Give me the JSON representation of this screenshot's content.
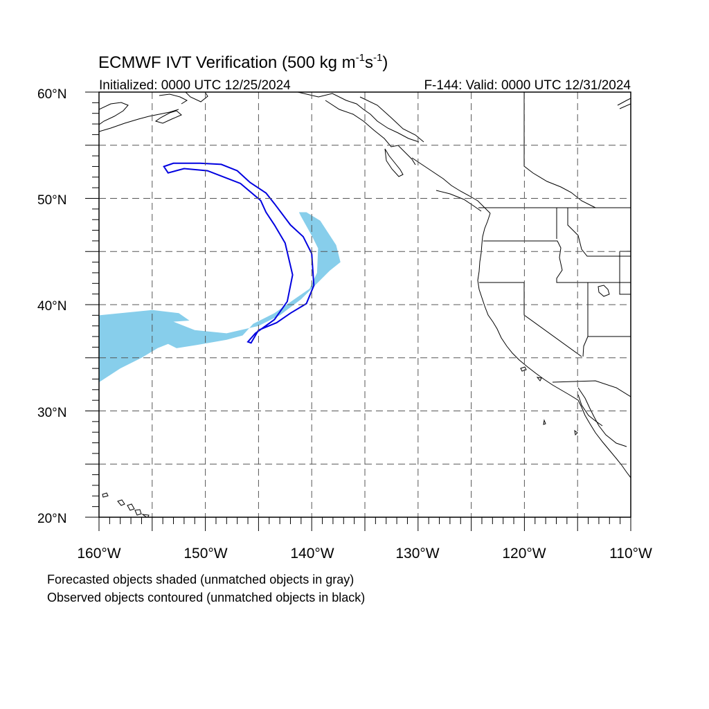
{
  "title": {
    "main": "ECMWF IVT Verification (500 kg m",
    "exp1": "-1",
    "mid": "s",
    "exp2": "-1",
    "close": ")"
  },
  "initialized": "Initialized: 0000 UTC 12/25/2024",
  "valid": "F-144: Valid: 0000 UTC 12/31/2024",
  "lat_labels": [
    "60°N",
    "50°N",
    "40°N",
    "30°N",
    "20°N"
  ],
  "lon_labels": [
    "160°W",
    "150°W",
    "140°W",
    "130°W",
    "120°W",
    "110°W"
  ],
  "notes": {
    "forecast": "Forecasted objects shaded (unmatched objects in gray)",
    "observed": "Observed objects contoured (unmatched objects in black)"
  },
  "colors": {
    "forecast_fill": "#87ceeb",
    "observed_contour": "#0000e0",
    "coastline": "#000000",
    "grid": "#555555"
  },
  "map_data": {
    "projection": "cylindrical equidistant",
    "lon_range": [
      -160,
      -110
    ],
    "lat_range": [
      20,
      60
    ],
    "grid_interval_deg": 5,
    "forecast_object": {
      "name": "Forecasted IVT object (matched)",
      "points": [
        [
          -160,
          39
        ],
        [
          -155,
          39.5
        ],
        [
          -152.5,
          39.2
        ],
        [
          -151.5,
          38.5
        ],
        [
          -153,
          38.4
        ],
        [
          -151,
          37.6
        ],
        [
          -148,
          37.3
        ],
        [
          -145,
          38
        ],
        [
          -143,
          39
        ],
        [
          -141,
          40.5
        ],
        [
          -139.5,
          42
        ],
        [
          -138.3,
          43.2
        ],
        [
          -137.3,
          44
        ],
        [
          -137.7,
          45.6
        ],
        [
          -139.2,
          47.9
        ],
        [
          -140.5,
          48.7
        ],
        [
          -141.2,
          48.7
        ],
        [
          -141,
          48.3
        ],
        [
          -140,
          46.5
        ],
        [
          -139.4,
          45.3
        ],
        [
          -139.5,
          43
        ],
        [
          -140.2,
          41.5
        ],
        [
          -141.5,
          40.6
        ],
        [
          -143.5,
          39.2
        ],
        [
          -145.5,
          38.2
        ],
        [
          -146.5,
          37.1
        ],
        [
          -148,
          36.7
        ],
        [
          -150.8,
          36.2
        ],
        [
          -152.7,
          35.9
        ],
        [
          -153.5,
          36.3
        ],
        [
          -154.5,
          35.9
        ],
        [
          -156,
          35
        ],
        [
          -158,
          34
        ],
        [
          -160,
          32.7
        ]
      ]
    },
    "observed_object": {
      "name": "Observed IVT object (matched)",
      "points": [
        [
          -153.9,
          53.0
        ],
        [
          -153.0,
          53.3
        ],
        [
          -150.5,
          53.3
        ],
        [
          -148.5,
          53.2
        ],
        [
          -147,
          52.6
        ],
        [
          -145.8,
          51.5
        ],
        [
          -144.3,
          50.5
        ],
        [
          -143.5,
          49.5
        ],
        [
          -142,
          47.5
        ],
        [
          -140.8,
          46.4
        ],
        [
          -140,
          44.8
        ],
        [
          -139.8,
          41.8
        ],
        [
          -140.5,
          40.1
        ],
        [
          -142,
          39.2
        ],
        [
          -143.3,
          38.3
        ],
        [
          -145,
          37.6
        ],
        [
          -145.7,
          36.4
        ],
        [
          -146,
          36.5
        ],
        [
          -145.3,
          37.3
        ],
        [
          -143.5,
          38.6
        ],
        [
          -142.3,
          40.3
        ],
        [
          -141.8,
          42.8
        ],
        [
          -142.5,
          45.8
        ],
        [
          -143.5,
          47.5
        ],
        [
          -144.3,
          48.7
        ],
        [
          -144.8,
          49.8
        ],
        [
          -146.7,
          51.4
        ],
        [
          -149.8,
          52.6
        ],
        [
          -152,
          52.8
        ],
        [
          -153.5,
          52.4
        ]
      ]
    }
  }
}
